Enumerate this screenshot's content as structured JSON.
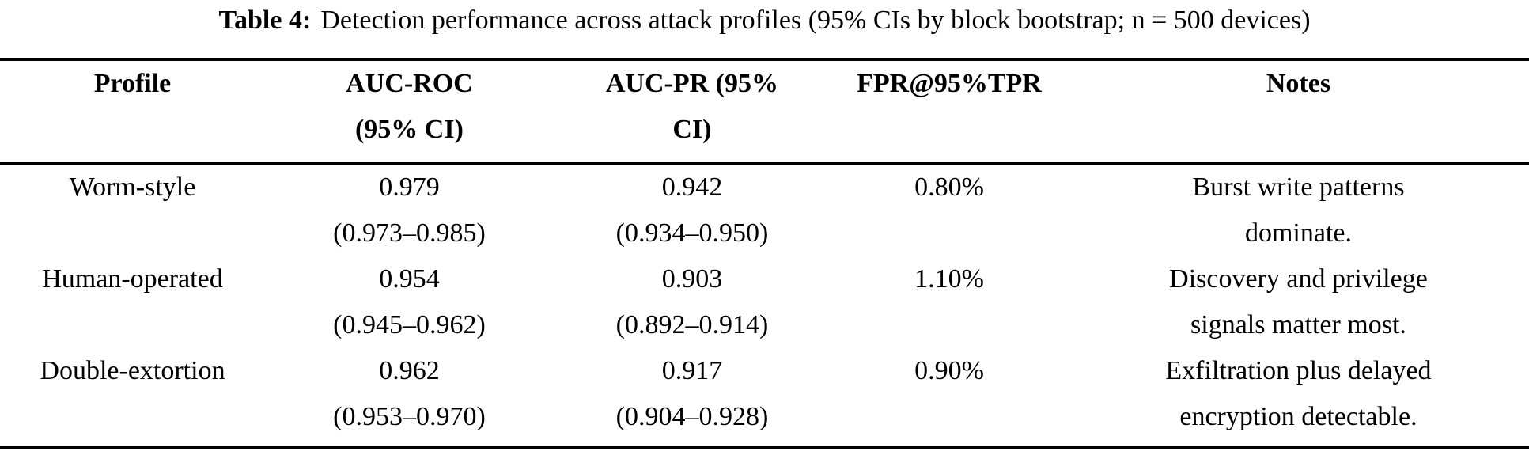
{
  "caption": {
    "label": "Table 4:",
    "text": "Detection performance across attack profiles (95% CIs by block bootstrap; n = 500 devices)"
  },
  "table": {
    "columns": [
      {
        "header_lines": [
          "Profile",
          ""
        ]
      },
      {
        "header_lines": [
          "AUC-ROC",
          "(95% CI)"
        ]
      },
      {
        "header_lines": [
          "AUC-PR (95%",
          "CI)"
        ]
      },
      {
        "header_lines": [
          "FPR@95%TPR",
          ""
        ]
      },
      {
        "header_lines": [
          "Notes",
          ""
        ]
      }
    ],
    "rows": [
      {
        "profile": "Worm-style",
        "auc_roc": [
          "0.979",
          "(0.973–0.985)"
        ],
        "auc_pr": [
          "0.942",
          "(0.934–0.950)"
        ],
        "fpr": "0.80%",
        "notes": [
          "Burst write patterns",
          "dominate."
        ]
      },
      {
        "profile": "Human-operated",
        "auc_roc": [
          "0.954",
          "(0.945–0.962)"
        ],
        "auc_pr": [
          "0.903",
          "(0.892–0.914)"
        ],
        "fpr": "1.10%",
        "notes": [
          "Discovery and privilege",
          "signals matter most."
        ]
      },
      {
        "profile": "Double-extortion",
        "auc_roc": [
          "0.962",
          "(0.953–0.970)"
        ],
        "auc_pr": [
          "0.917",
          "(0.904–0.928)"
        ],
        "fpr": "0.90%",
        "notes": [
          "Exfiltration plus delayed",
          "encryption detectable."
        ]
      }
    ]
  }
}
